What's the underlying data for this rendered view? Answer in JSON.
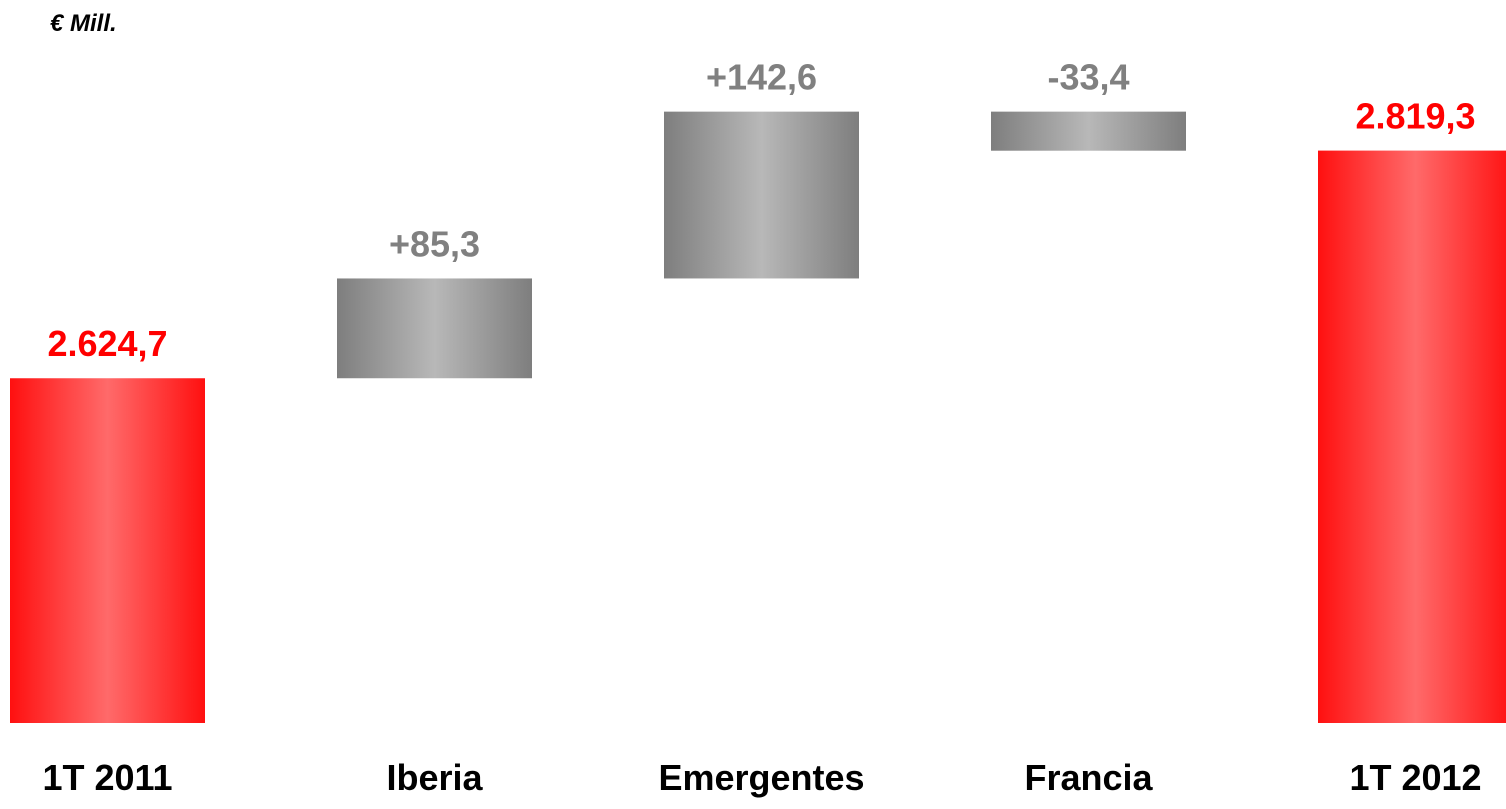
{
  "unit_label": "€ Mill.",
  "colors": {
    "total": "#ff0000",
    "delta": "#808080",
    "delta_label": "#808080",
    "total_label": "#ff0000",
    "category_label": "#000000"
  },
  "chart_data": {
    "type": "bar",
    "subtype": "waterfall",
    "title": "",
    "xlabel": "",
    "ylabel": "",
    "unit": "€ Mill.",
    "categories": [
      "1T 2011",
      "Iberia",
      "Emergentes",
      "Francia",
      "1T 2012"
    ],
    "values": [
      2624.7,
      85.3,
      142.6,
      -33.4,
      2819.3
    ],
    "value_labels": [
      "2.624,7",
      "+85,3",
      "+142,6",
      "-33,4",
      "2.819,3"
    ],
    "bar_kinds": [
      "total",
      "delta",
      "delta",
      "delta",
      "total"
    ],
    "ylim": [
      2330,
      2854
    ],
    "grid": false,
    "legend": "none"
  }
}
